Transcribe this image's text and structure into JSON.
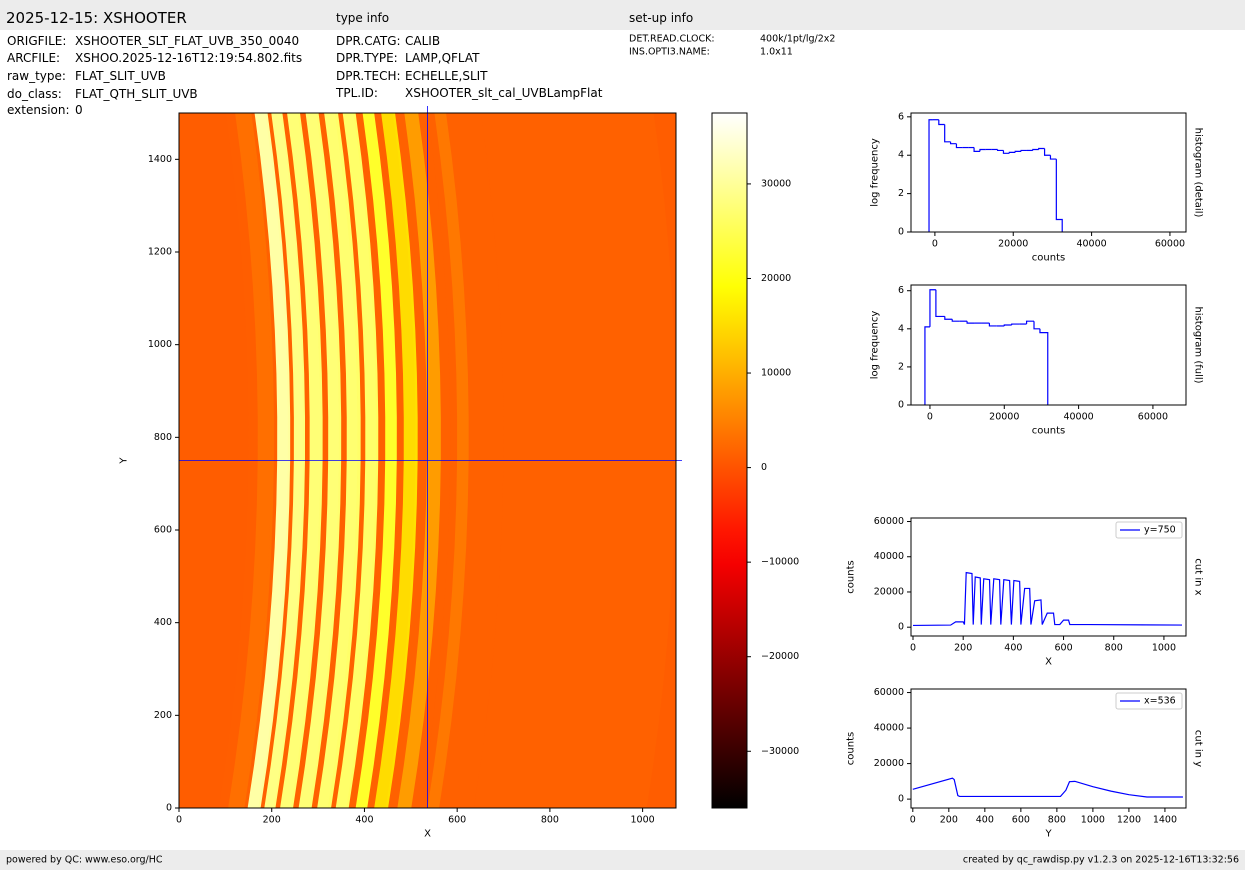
{
  "header": {
    "title": "2025-12-15: XSHOOTER",
    "type_info": "type info",
    "setup_info": "set-up info"
  },
  "file_fields": [
    {
      "key": "ORIGFILE:",
      "value": "XSHOOTER_SLT_FLAT_UVB_350_0040"
    },
    {
      "key": "ARCFILE:",
      "value": "XSHOO.2025-12-16T12:19:54.802.fits"
    },
    {
      "key": "raw_type:",
      "value": "FLAT_SLIT_UVB"
    },
    {
      "key": "do_class:",
      "value": "FLAT_QTH_SLIT_UVB"
    },
    {
      "key": "extension:",
      "value": "0"
    }
  ],
  "type_fields": [
    {
      "key": "DPR.CATG:",
      "value": "CALIB"
    },
    {
      "key": "DPR.TYPE:",
      "value": "LAMP,QFLAT"
    },
    {
      "key": "DPR.TECH:",
      "value": "ECHELLE,SLIT"
    },
    {
      "key": "TPL.ID:",
      "value": "XSHOOTER_slt_cal_UVBLampFlat"
    }
  ],
  "setup_fields": [
    {
      "key": "DET.READ.CLOCK:",
      "value": "400k/1pt/lg/2x2"
    },
    {
      "key": "INS.OPTI3.NAME:",
      "value": "1.0x11"
    }
  ],
  "footer": {
    "left": "powered by QC: www.eso.org/HC",
    "right": "created by qc_rawdisp.py v1.2.3 on 2025-12-16T13:32:56"
  },
  "chart_data": [
    {
      "type": "image",
      "xlabel": "X",
      "ylabel": "Y",
      "colormap": "hot",
      "xlim": [
        0,
        1072
      ],
      "ylim": [
        0,
        1500
      ],
      "xticks": [
        0,
        200,
        400,
        600,
        800,
        1000
      ],
      "yticks": [
        0,
        200,
        400,
        600,
        800,
        1000,
        1200,
        1400
      ],
      "crosshair_x": 536,
      "crosshair_y": 750,
      "crosshair_color": "#0000ff"
    },
    {
      "type": "colorbar",
      "colormap": "hot",
      "ylim": [
        -36000,
        37500
      ],
      "yticks": [
        {
          "value": -30000,
          "label": "−30000"
        },
        {
          "value": -20000,
          "label": "−20000"
        },
        {
          "value": -10000,
          "label": "−10000"
        },
        0,
        10000,
        20000,
        30000
      ]
    },
    {
      "type": "histogram",
      "xlabel": "counts",
      "ylabel": "log frequency",
      "side_label": "histogram (detail)",
      "color": "#0000ff",
      "xlim": [
        -6100,
        64100
      ],
      "ylim": [
        0,
        6.2
      ],
      "xticks": [
        0,
        20000,
        40000,
        60000
      ],
      "yticks": [
        0,
        2,
        4,
        6
      ],
      "bins": [
        -1500,
        -500,
        1000,
        2500,
        4000,
        5500,
        7000,
        8500,
        10000,
        11500,
        13000,
        14500,
        16000,
        17500,
        19000,
        20500,
        22000,
        23500,
        25000,
        26500,
        28000,
        29500,
        31000,
        32500
      ],
      "values": [
        5.85,
        5.85,
        5.6,
        4.7,
        4.6,
        4.4,
        4.4,
        4.4,
        4.2,
        4.3,
        4.3,
        4.3,
        4.25,
        4.1,
        4.15,
        4.2,
        4.25,
        4.25,
        4.3,
        4.35,
        4.0,
        3.8,
        0.65
      ]
    },
    {
      "type": "histogram",
      "xlabel": "counts",
      "ylabel": "log frequency",
      "side_label": "histogram (full)",
      "color": "#0000ff",
      "xlim": [
        -5100,
        68900
      ],
      "ylim": [
        0,
        6.3
      ],
      "xticks": [
        0,
        20000,
        40000,
        60000
      ],
      "yticks": [
        0,
        2,
        4,
        6
      ],
      "bins": [
        -1350,
        0,
        1600,
        4000,
        6000,
        8000,
        10000,
        12000,
        14000,
        16000,
        18000,
        20000,
        22000,
        24000,
        26000,
        28000,
        29600,
        31700
      ],
      "values": [
        4.1,
        6.05,
        4.65,
        4.5,
        4.4,
        4.4,
        4.3,
        4.3,
        4.3,
        4.15,
        4.15,
        4.2,
        4.25,
        4.25,
        4.4,
        4.0,
        3.8
      ]
    },
    {
      "type": "line",
      "xlabel": "X",
      "ylabel": "counts",
      "side_label": "cut in x",
      "legend": "upper right",
      "xlim": [
        -8,
        1088
      ],
      "ylim": [
        -5000,
        62000
      ],
      "xticks": [
        0,
        200,
        400,
        600,
        800,
        1000
      ],
      "yticks": [
        0,
        20000,
        40000,
        60000
      ],
      "x": [
        0,
        150,
        170,
        200,
        205,
        212,
        235,
        240,
        248,
        268,
        272,
        282,
        305,
        310,
        322,
        345,
        350,
        362,
        385,
        392,
        402,
        425,
        430,
        445,
        465,
        470,
        485,
        510,
        515,
        535,
        560,
        565,
        585,
        600,
        620,
        625,
        700,
        1072
      ],
      "series": [
        {
          "name": "y=750",
          "color": "#0000ff",
          "values": [
            1000,
            1200,
            3000,
            3000,
            1500,
            31000,
            30500,
            1500,
            28500,
            28000,
            1500,
            27500,
            27000,
            1500,
            27500,
            27000,
            1500,
            27000,
            26500,
            1500,
            26500,
            26000,
            1500,
            22000,
            22000,
            1500,
            15000,
            15500,
            1500,
            8000,
            8000,
            1500,
            1500,
            4000,
            4000,
            1500,
            1500,
            1200
          ]
        }
      ]
    },
    {
      "type": "line",
      "xlabel": "Y",
      "ylabel": "counts",
      "side_label": "cut in y",
      "legend": "upper right",
      "xlim": [
        -10,
        1517
      ],
      "ylim": [
        -5000,
        62000
      ],
      "xticks": [
        0,
        200,
        400,
        600,
        800,
        1000,
        1200,
        1400
      ],
      "yticks": [
        0,
        20000,
        40000,
        60000
      ],
      "x": [
        0,
        220,
        230,
        250,
        260,
        820,
        850,
        870,
        900,
        1000,
        1100,
        1200,
        1300,
        1500
      ],
      "series": [
        {
          "name": "x=536",
          "color": "#0000ff",
          "values": [
            5500,
            11800,
            11000,
            2000,
            1500,
            1500,
            5000,
            9800,
            10000,
            7000,
            4500,
            2500,
            1200,
            1200
          ]
        }
      ]
    }
  ]
}
